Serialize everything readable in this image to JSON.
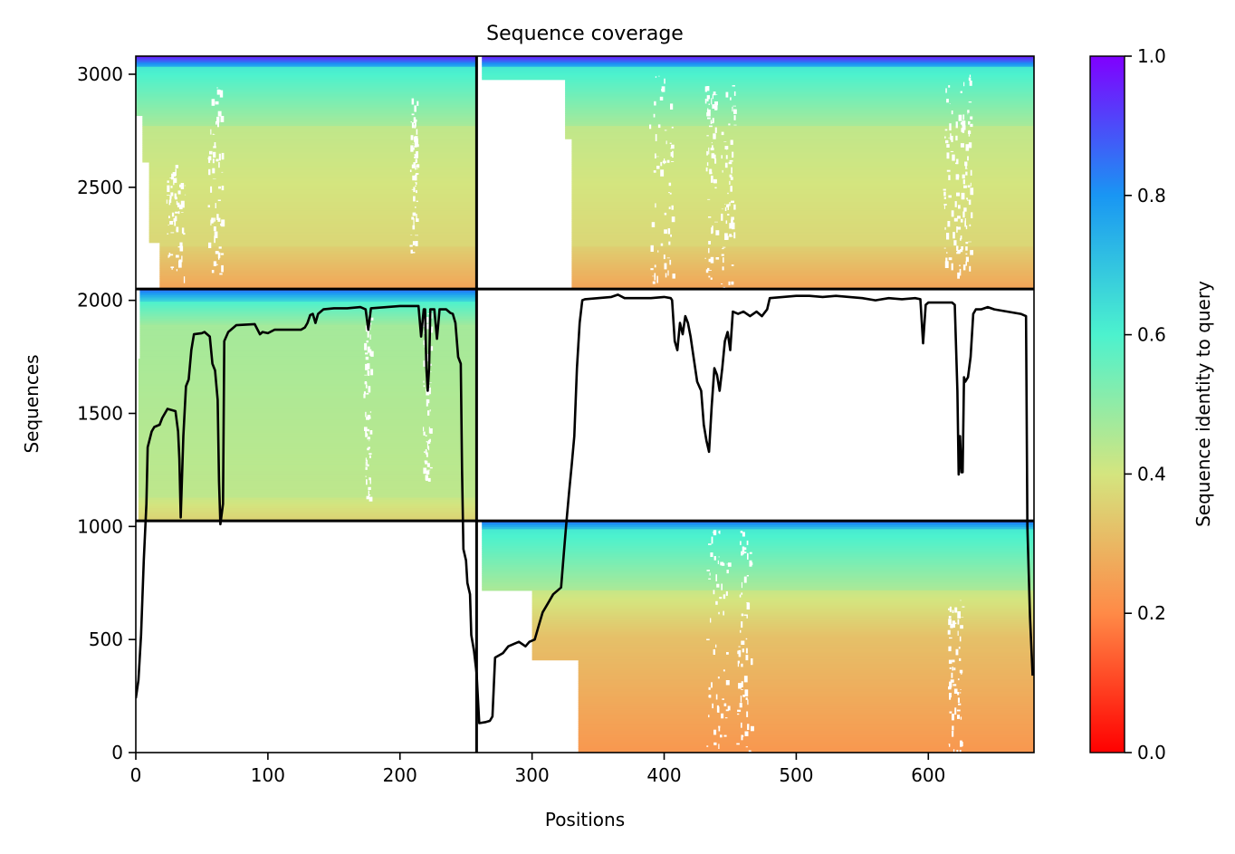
{
  "chart_data": {
    "type": "heatmap",
    "title": "Sequence coverage",
    "xlabel": "Positions",
    "ylabel": "Sequences",
    "xlim": [
      0,
      680
    ],
    "ylim": [
      0,
      3080
    ],
    "xticks": [
      0,
      100,
      200,
      300,
      400,
      500,
      600
    ],
    "yticks": [
      0,
      500,
      1000,
      1500,
      2000,
      2500,
      3000
    ],
    "grid": false,
    "block_boundaries": {
      "x": [
        258
      ],
      "y": [
        1025,
        2050
      ]
    },
    "colorbar": {
      "label": "Sequence identity to query",
      "range": [
        0.0,
        1.0
      ],
      "ticks": [
        "0.0",
        "0.2",
        "0.4",
        "0.6",
        "0.8",
        "1.0"
      ],
      "colormap": "rainbow_r",
      "colors": [
        "#ff0000",
        "#ff8a47",
        "#d4e57f",
        "#4cf2ce",
        "#1996f3",
        "#8000ff"
      ]
    },
    "coverage_line": {
      "name": "",
      "color": "#000000",
      "points": [
        [
          0,
          240
        ],
        [
          2,
          320
        ],
        [
          4,
          520
        ],
        [
          6,
          850
        ],
        [
          8,
          1100
        ],
        [
          9,
          1350
        ],
        [
          12,
          1420
        ],
        [
          14,
          1440
        ],
        [
          18,
          1450
        ],
        [
          20,
          1480
        ],
        [
          24,
          1520
        ],
        [
          30,
          1510
        ],
        [
          32,
          1420
        ],
        [
          33,
          1300
        ],
        [
          34,
          1040
        ],
        [
          36,
          1400
        ],
        [
          38,
          1620
        ],
        [
          40,
          1650
        ],
        [
          42,
          1780
        ],
        [
          44,
          1850
        ],
        [
          50,
          1855
        ],
        [
          52,
          1860
        ],
        [
          56,
          1840
        ],
        [
          58,
          1720
        ],
        [
          60,
          1690
        ],
        [
          62,
          1560
        ],
        [
          63,
          1200
        ],
        [
          64,
          1010
        ],
        [
          66,
          1100
        ],
        [
          67,
          1820
        ],
        [
          70,
          1860
        ],
        [
          74,
          1880
        ],
        [
          76,
          1890
        ],
        [
          90,
          1895
        ],
        [
          94,
          1850
        ],
        [
          96,
          1860
        ],
        [
          100,
          1855
        ],
        [
          105,
          1870
        ],
        [
          110,
          1870
        ],
        [
          115,
          1870
        ],
        [
          120,
          1870
        ],
        [
          125,
          1870
        ],
        [
          128,
          1880
        ],
        [
          130,
          1900
        ],
        [
          132,
          1935
        ],
        [
          134,
          1940
        ],
        [
          136,
          1900
        ],
        [
          138,
          1940
        ],
        [
          142,
          1960
        ],
        [
          150,
          1965
        ],
        [
          160,
          1965
        ],
        [
          170,
          1970
        ],
        [
          174,
          1960
        ],
        [
          176,
          1870
        ],
        [
          178,
          1965
        ],
        [
          190,
          1970
        ],
        [
          200,
          1975
        ],
        [
          210,
          1975
        ],
        [
          214,
          1975
        ],
        [
          216,
          1840
        ],
        [
          218,
          1960
        ],
        [
          219,
          1960
        ],
        [
          220,
          1700
        ],
        [
          221,
          1600
        ],
        [
          222,
          1700
        ],
        [
          223,
          1960
        ],
        [
          226,
          1960
        ],
        [
          228,
          1830
        ],
        [
          230,
          1960
        ],
        [
          235,
          1960
        ],
        [
          238,
          1945
        ],
        [
          240,
          1940
        ],
        [
          242,
          1900
        ],
        [
          244,
          1750
        ],
        [
          246,
          1720
        ],
        [
          247,
          1250
        ],
        [
          248,
          900
        ],
        [
          250,
          850
        ],
        [
          251,
          750
        ],
        [
          253,
          700
        ],
        [
          254,
          520
        ],
        [
          256,
          450
        ],
        [
          258,
          350
        ],
        [
          260,
          130
        ],
        [
          265,
          135
        ],
        [
          268,
          140
        ],
        [
          270,
          160
        ],
        [
          272,
          420
        ],
        [
          275,
          430
        ],
        [
          278,
          440
        ],
        [
          282,
          470
        ],
        [
          286,
          480
        ],
        [
          290,
          490
        ],
        [
          295,
          470
        ],
        [
          298,
          490
        ],
        [
          302,
          500
        ],
        [
          305,
          560
        ],
        [
          308,
          620
        ],
        [
          312,
          660
        ],
        [
          316,
          700
        ],
        [
          320,
          720
        ],
        [
          322,
          730
        ],
        [
          324,
          880
        ],
        [
          326,
          1020
        ],
        [
          328,
          1150
        ],
        [
          330,
          1270
        ],
        [
          332,
          1400
        ],
        [
          334,
          1700
        ],
        [
          336,
          1900
        ],
        [
          338,
          2000
        ],
        [
          340,
          2005
        ],
        [
          350,
          2010
        ],
        [
          360,
          2015
        ],
        [
          365,
          2025
        ],
        [
          370,
          2010
        ],
        [
          380,
          2010
        ],
        [
          390,
          2010
        ],
        [
          400,
          2015
        ],
        [
          405,
          2010
        ],
        [
          406,
          2000
        ],
        [
          408,
          1820
        ],
        [
          410,
          1780
        ],
        [
          412,
          1900
        ],
        [
          414,
          1850
        ],
        [
          416,
          1930
        ],
        [
          418,
          1900
        ],
        [
          420,
          1840
        ],
        [
          422,
          1760
        ],
        [
          425,
          1640
        ],
        [
          428,
          1600
        ],
        [
          430,
          1450
        ],
        [
          432,
          1380
        ],
        [
          434,
          1330
        ],
        [
          436,
          1530
        ],
        [
          438,
          1700
        ],
        [
          440,
          1670
        ],
        [
          442,
          1600
        ],
        [
          444,
          1700
        ],
        [
          446,
          1820
        ],
        [
          448,
          1860
        ],
        [
          450,
          1780
        ],
        [
          452,
          1950
        ],
        [
          456,
          1940
        ],
        [
          460,
          1950
        ],
        [
          465,
          1930
        ],
        [
          470,
          1950
        ],
        [
          474,
          1930
        ],
        [
          478,
          1960
        ],
        [
          480,
          2010
        ],
        [
          490,
          2015
        ],
        [
          500,
          2020
        ],
        [
          510,
          2020
        ],
        [
          520,
          2015
        ],
        [
          530,
          2020
        ],
        [
          540,
          2015
        ],
        [
          550,
          2010
        ],
        [
          560,
          2000
        ],
        [
          570,
          2010
        ],
        [
          580,
          2005
        ],
        [
          590,
          2010
        ],
        [
          594,
          2005
        ],
        [
          596,
          1810
        ],
        [
          598,
          1980
        ],
        [
          600,
          1990
        ],
        [
          610,
          1990
        ],
        [
          618,
          1990
        ],
        [
          620,
          1980
        ],
        [
          622,
          1600
        ],
        [
          623,
          1230
        ],
        [
          624,
          1400
        ],
        [
          625,
          1240
        ],
        [
          626,
          1240
        ],
        [
          627,
          1660
        ],
        [
          628,
          1640
        ],
        [
          630,
          1660
        ],
        [
          632,
          1750
        ],
        [
          634,
          1940
        ],
        [
          636,
          1960
        ],
        [
          640,
          1960
        ],
        [
          645,
          1970
        ],
        [
          650,
          1960
        ],
        [
          660,
          1950
        ],
        [
          670,
          1940
        ],
        [
          674,
          1930
        ],
        [
          675,
          1000
        ],
        [
          677,
          600
        ],
        [
          679,
          340
        ]
      ]
    }
  }
}
